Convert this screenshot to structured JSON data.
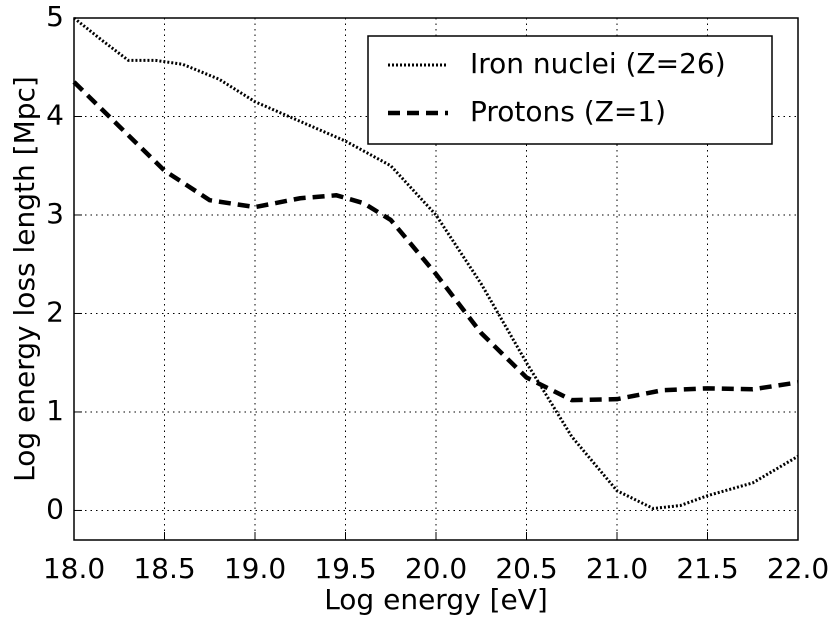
{
  "chart_data": {
    "type": "line",
    "xlabel": "Log energy [eV]",
    "ylabel": "Log energy loss length [Mpc]",
    "series": [
      {
        "name": "Iron nuclei (Z=26)",
        "color": "#000000",
        "linestyle": "dotted",
        "x": [
          18.0,
          18.15,
          18.3,
          18.45,
          18.6,
          18.8,
          19.0,
          19.25,
          19.5,
          19.75,
          20.0,
          20.25,
          20.5,
          20.75,
          21.0,
          21.2,
          21.35,
          21.5,
          21.75,
          22.0
        ],
        "values": [
          5.0,
          4.78,
          4.57,
          4.57,
          4.53,
          4.38,
          4.15,
          3.95,
          3.75,
          3.5,
          3.0,
          2.3,
          1.5,
          0.75,
          0.2,
          0.02,
          0.05,
          0.15,
          0.28,
          0.55
        ]
      },
      {
        "name": "Protons (Z=1)",
        "color": "#000000",
        "linestyle": "dashed",
        "x": [
          18.0,
          18.25,
          18.5,
          18.75,
          19.0,
          19.25,
          19.45,
          19.6,
          19.75,
          20.0,
          20.25,
          20.5,
          20.75,
          21.0,
          21.25,
          21.5,
          21.75,
          22.0
        ],
        "values": [
          4.35,
          3.9,
          3.45,
          3.15,
          3.08,
          3.17,
          3.2,
          3.12,
          2.95,
          2.4,
          1.8,
          1.35,
          1.12,
          1.13,
          1.22,
          1.24,
          1.23,
          1.3
        ]
      }
    ],
    "xlim": [
      18.0,
      22.0
    ],
    "xticks": [
      {
        "value": 18.0,
        "label": "18.0"
      },
      {
        "value": 18.5,
        "label": "18.5"
      },
      {
        "value": 19.0,
        "label": "19.0"
      },
      {
        "value": 19.5,
        "label": "19.5"
      },
      {
        "value": 20.0,
        "label": "20.0"
      },
      {
        "value": 20.5,
        "label": "20.5"
      },
      {
        "value": 21.0,
        "label": "21.0"
      },
      {
        "value": 21.5,
        "label": "21.5"
      },
      {
        "value": 22.0,
        "label": "22.0"
      }
    ],
    "ylim": [
      -0.3,
      5
    ],
    "yticks": [
      0,
      1,
      2,
      3,
      4,
      5
    ],
    "grid": true,
    "legend": "upper right"
  }
}
